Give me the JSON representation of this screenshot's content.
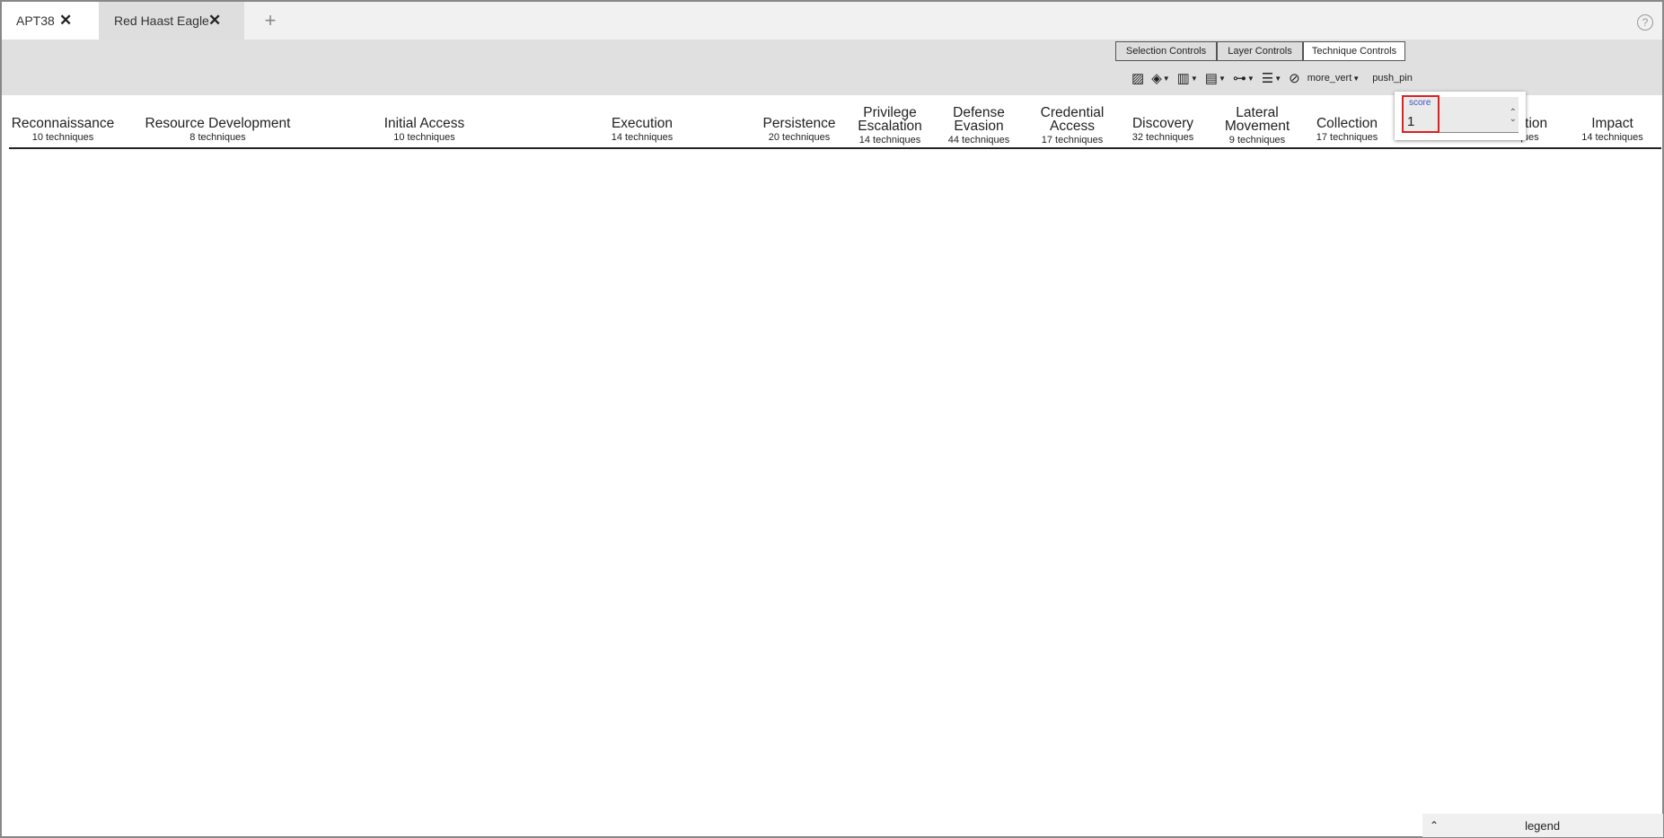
{
  "tabs": [
    {
      "label": "APT38"
    },
    {
      "label": "Red Haast Eagle"
    }
  ],
  "tab_close": "✕",
  "tab_add": "+",
  "help": "?",
  "controls": {
    "selection": "Selection Controls",
    "layer": "Layer Controls",
    "technique": "Technique Controls"
  },
  "toolbar": {
    "more": "more_vert",
    "pin": "push_pin"
  },
  "score": {
    "label": "score",
    "value": "1"
  },
  "legend": {
    "label": "legend"
  },
  "tactics": [
    {
      "name": "Reconnaissance",
      "count": "10 techniques"
    },
    {
      "name": "Resource Development",
      "count": "8 techniques"
    },
    {
      "name": "Initial Access",
      "count": "10 techniques"
    },
    {
      "name": "Execution",
      "count": "14 techniques"
    },
    {
      "name": "Persistence",
      "count": "20 techniques"
    },
    {
      "name": "Privilege Escalation",
      "count": "14 techniques"
    },
    {
      "name": "Defense Evasion",
      "count": "44 techniques"
    },
    {
      "name": "Credential Access",
      "count": "17 techniques"
    },
    {
      "name": "Discovery",
      "count": "32 techniques"
    },
    {
      "name": "Lateral Movement",
      "count": "9 techniques"
    },
    {
      "name": "Collection",
      "count": "17 techniques"
    },
    {
      "name": "Exfiltration",
      "count": "techniques"
    },
    {
      "name": "Impact",
      "count": "14 techniques"
    }
  ],
  "colors": {
    "red": "#ff6666",
    "green": "#8ec843",
    "orange": "#ffb366"
  }
}
